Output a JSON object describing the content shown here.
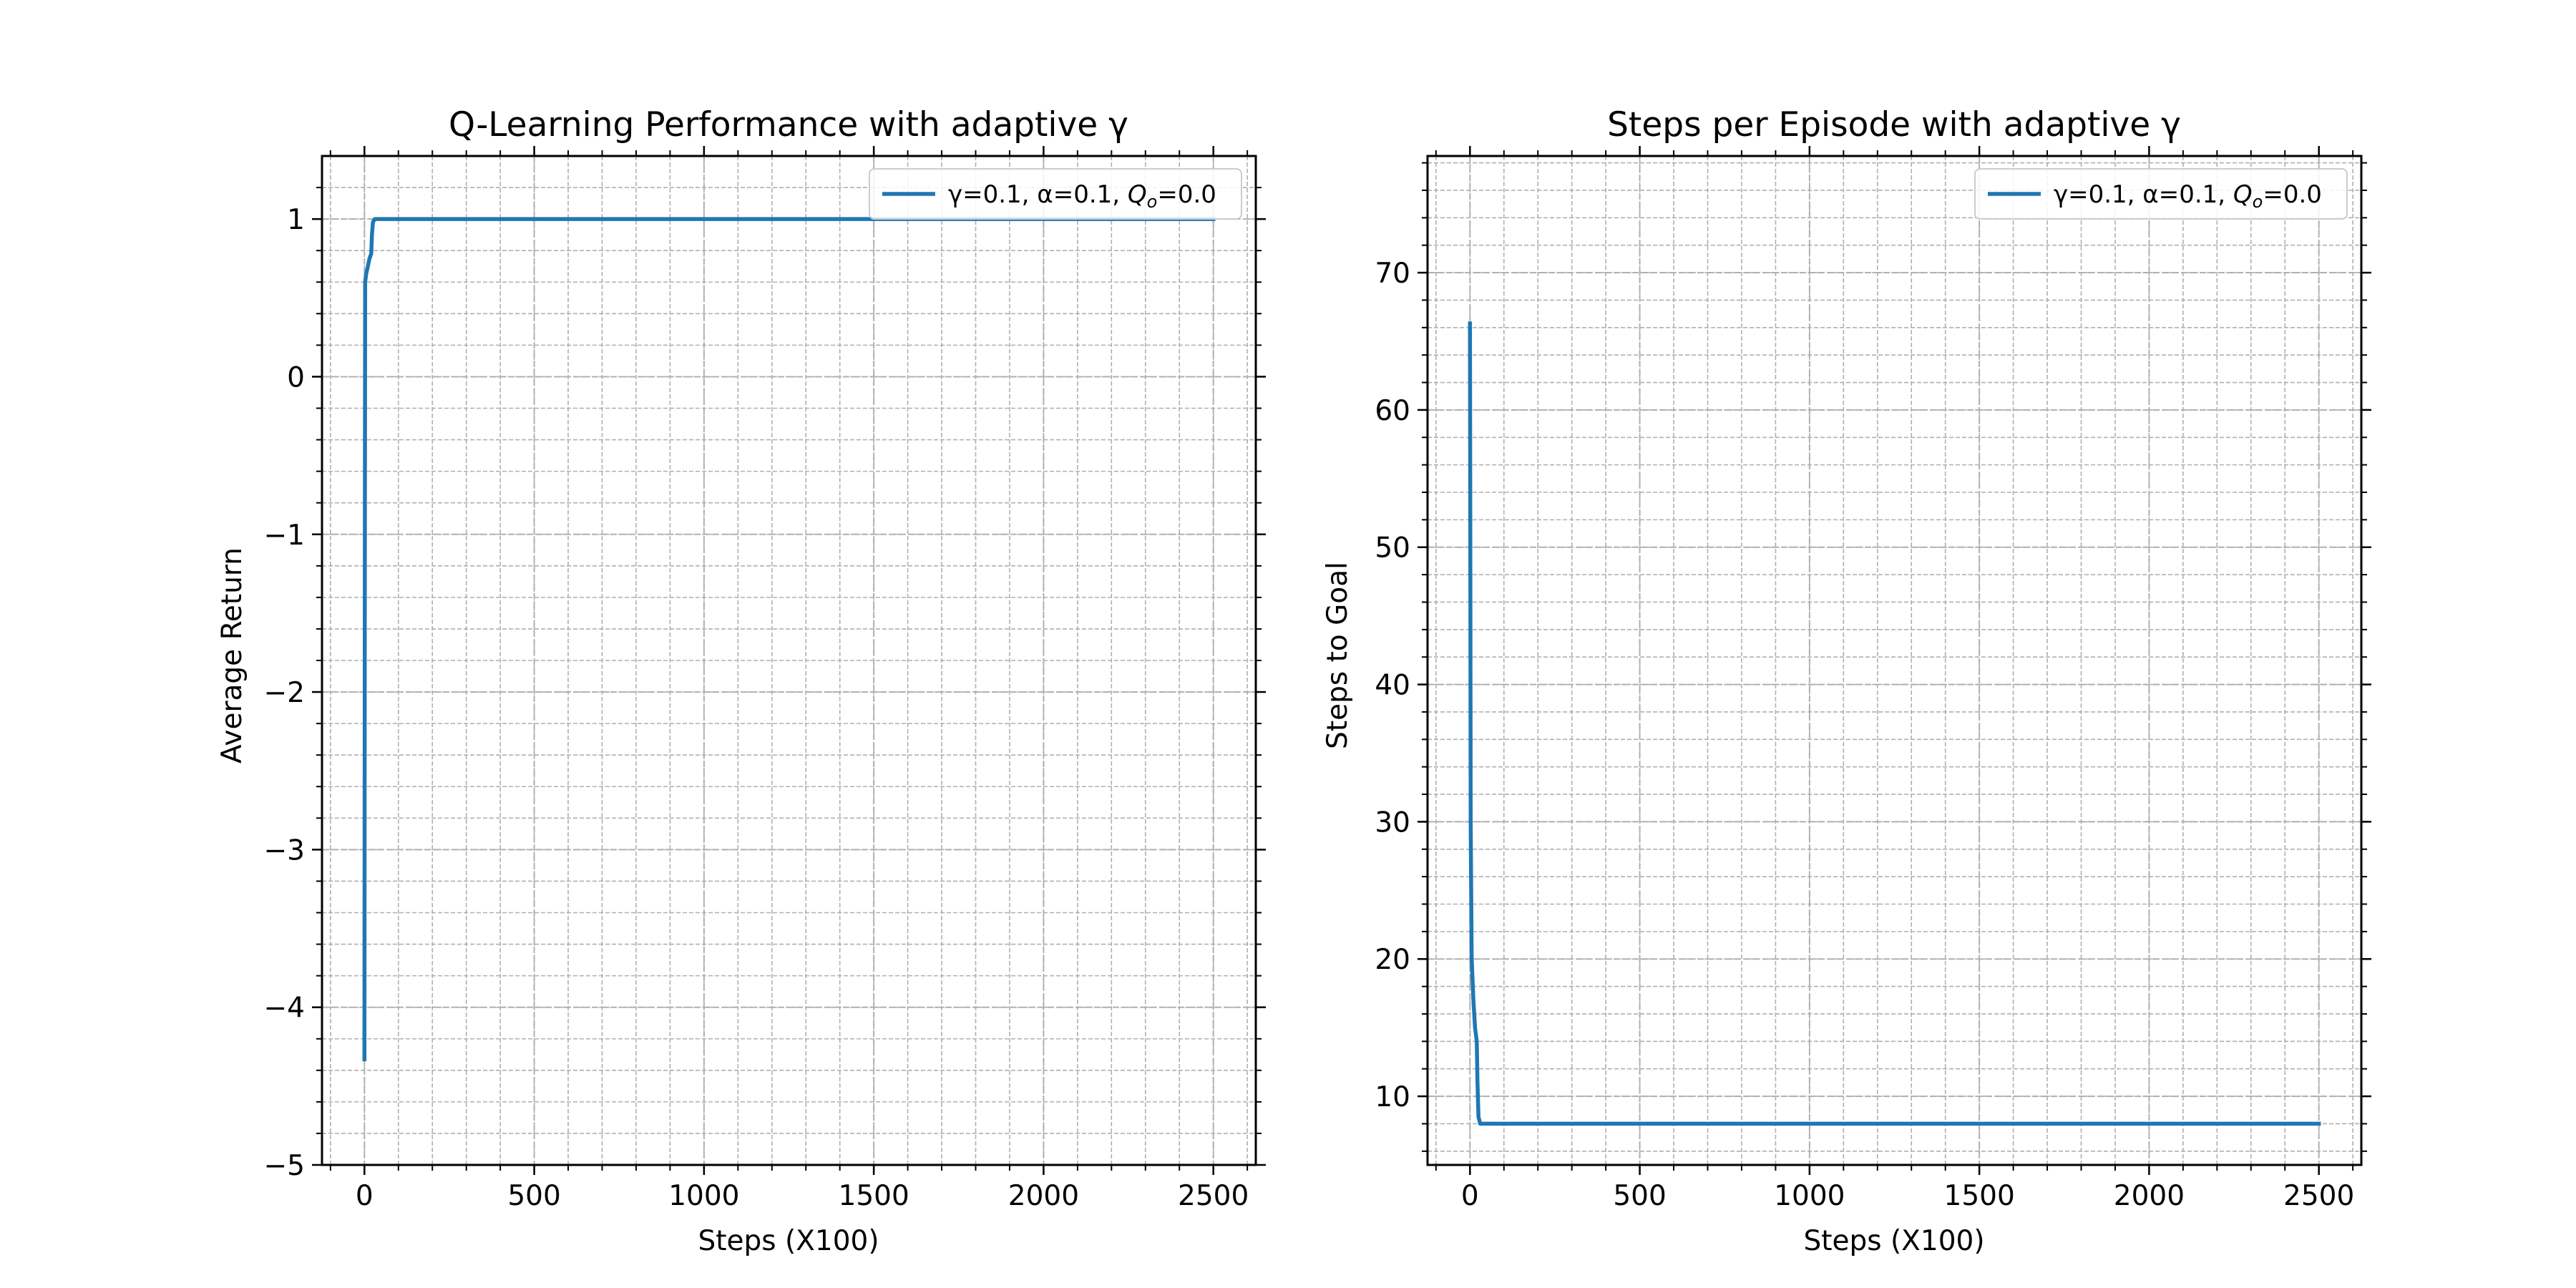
{
  "chart_data": [
    {
      "type": "line",
      "title": "Q-Learning Performance with adaptive γ",
      "xlabel": "Steps (X100)",
      "ylabel": "Average Return",
      "xlim": [
        -125,
        2625
      ],
      "ylim": [
        -5,
        1.4
      ],
      "xticks": [
        0,
        500,
        1000,
        1500,
        2000,
        2500
      ],
      "xtick_labels": [
        "0",
        "500",
        "1000",
        "1500",
        "2000",
        "2500"
      ],
      "yticks": [
        -5,
        -4,
        -3,
        -2,
        -1,
        0,
        1
      ],
      "ytick_labels": [
        "−5",
        "−4",
        "−3",
        "−2",
        "−1",
        "0",
        "1"
      ],
      "grid": true,
      "legend_position": "upper right",
      "series": [
        {
          "name": "γ=0.1, α=0.1, Q_o=0.0",
          "color": "#1f77b4",
          "x": [
            0,
            1,
            2,
            5,
            10,
            15,
            20,
            22,
            25,
            30,
            60,
            100,
            500,
            1000,
            1500,
            2000,
            2500
          ],
          "y": [
            -4.33,
            -1.5,
            0.6,
            0.65,
            0.7,
            0.75,
            0.78,
            0.9,
            0.98,
            1.0,
            1.0,
            1.0,
            1.0,
            1.0,
            1.0,
            1.0,
            1.0
          ]
        }
      ]
    },
    {
      "type": "line",
      "title": "Steps per Episode with adaptive γ",
      "xlabel": "Steps (X100)",
      "ylabel": "Steps to Goal",
      "xlim": [
        -125,
        2625
      ],
      "ylim": [
        5,
        78.5
      ],
      "xticks": [
        0,
        500,
        1000,
        1500,
        2000,
        2500
      ],
      "xtick_labels": [
        "0",
        "500",
        "1000",
        "1500",
        "2000",
        "2500"
      ],
      "yticks": [
        10,
        20,
        30,
        40,
        50,
        60,
        70
      ],
      "ytick_labels": [
        "10",
        "20",
        "30",
        "40",
        "50",
        "60",
        "70"
      ],
      "grid": true,
      "legend_position": "upper right",
      "series": [
        {
          "name": "γ=0.1, α=0.1, Q_o=0.0",
          "color": "#1f77b4",
          "x": [
            0,
            1,
            2,
            5,
            10,
            15,
            20,
            22,
            25,
            30,
            40,
            100,
            500,
            1000,
            1500,
            2000,
            2500
          ],
          "y": [
            66.3,
            50.0,
            30.0,
            20.0,
            17.0,
            15.0,
            14.0,
            11.0,
            8.5,
            8.0,
            8.0,
            8.0,
            8.0,
            8.0,
            8.0,
            8.0,
            8.0
          ]
        }
      ]
    }
  ]
}
